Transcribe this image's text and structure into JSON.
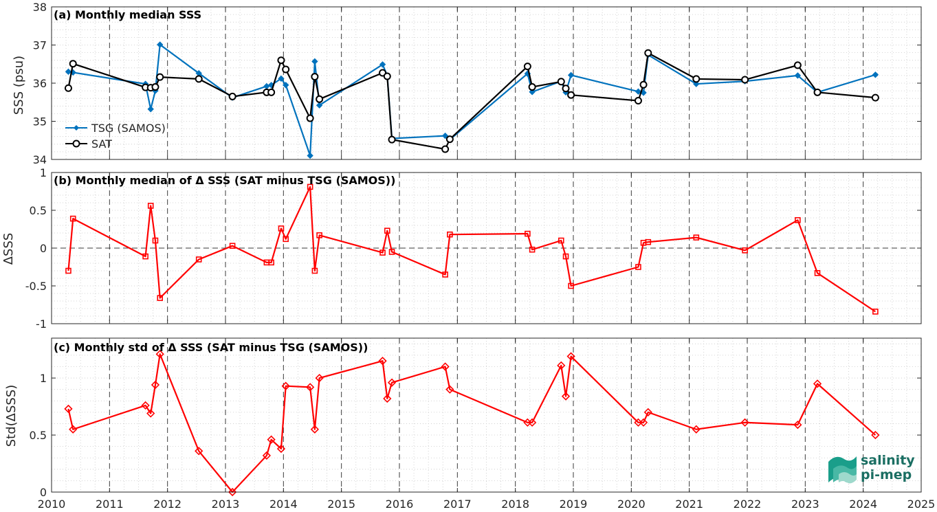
{
  "chart_data": [
    {
      "type": "line",
      "title": "(a) Monthly median SSS",
      "xlabel": "",
      "ylabel": "SSS (psu)",
      "xlim": [
        2010,
        2025
      ],
      "ylim": [
        34,
        38
      ],
      "yticks": [
        34,
        35,
        36,
        37,
        38
      ],
      "grid": "minor dotted, yearly dashed verticals",
      "legend": "lower-left",
      "series": [
        {
          "name": "TSG (SAMOS)",
          "color": "#0072bd",
          "marker": "diamond",
          "x": [
            2010.29,
            2010.37,
            2011.62,
            2011.71,
            2011.79,
            2011.87,
            2012.54,
            2013.12,
            2013.71,
            2013.79,
            2013.96,
            2014.04,
            2014.46,
            2014.54,
            2014.62,
            2015.71,
            2015.79,
            2015.87,
            2016.79,
            2016.87,
            2018.21,
            2018.29,
            2018.79,
            2018.87,
            2018.96,
            2020.12,
            2020.21,
            2020.29,
            2021.12,
            2021.96,
            2022.87,
            2023.21,
            2024.21
          ],
          "y": [
            36.3,
            36.28,
            35.98,
            35.32,
            35.8,
            37.01,
            36.26,
            35.62,
            35.92,
            35.95,
            36.12,
            35.95,
            34.1,
            36.57,
            35.42,
            36.49,
            36.2,
            34.55,
            34.62,
            34.52,
            36.25,
            35.77,
            36.05,
            35.76,
            36.21,
            35.78,
            35.75,
            36.74,
            35.98,
            36.05,
            36.2,
            35.76,
            36.22
          ]
        },
        {
          "name": "SAT",
          "color": "#000000",
          "marker": "circle",
          "x": [
            2010.29,
            2010.37,
            2011.62,
            2011.71,
            2011.79,
            2011.87,
            2012.54,
            2013.12,
            2013.71,
            2013.79,
            2013.96,
            2014.04,
            2014.46,
            2014.54,
            2014.62,
            2015.71,
            2015.79,
            2015.87,
            2016.79,
            2016.87,
            2018.21,
            2018.29,
            2018.79,
            2018.87,
            2018.96,
            2020.12,
            2020.21,
            2020.29,
            2021.12,
            2021.96,
            2022.87,
            2023.21,
            2024.21
          ],
          "y": [
            35.87,
            36.51,
            35.89,
            35.88,
            35.9,
            36.16,
            36.11,
            35.65,
            35.76,
            35.76,
            36.6,
            36.36,
            35.08,
            36.17,
            35.58,
            36.27,
            36.18,
            34.52,
            34.27,
            34.53,
            36.44,
            35.9,
            36.04,
            35.86,
            35.69,
            35.54,
            35.96,
            36.79,
            36.11,
            36.09,
            36.47,
            35.76,
            35.62
          ]
        }
      ]
    },
    {
      "type": "line",
      "title": "(b) Monthly median of Δ SSS (SAT minus TSG (SAMOS))",
      "xlabel": "",
      "ylabel": "ΔSSS",
      "xlim": [
        2010,
        2025
      ],
      "ylim": [
        -1,
        1
      ],
      "yticks": [
        -1,
        -0.5,
        0,
        0.5,
        1
      ],
      "reference_line": 0,
      "grid": "minor dotted, yearly dashed verticals",
      "series": [
        {
          "color": "#ff0000",
          "marker": "square",
          "x": [
            2010.29,
            2010.37,
            2011.62,
            2011.71,
            2011.79,
            2011.87,
            2012.54,
            2013.12,
            2013.71,
            2013.79,
            2013.96,
            2014.04,
            2014.46,
            2014.54,
            2014.62,
            2015.71,
            2015.79,
            2015.87,
            2016.79,
            2016.87,
            2018.21,
            2018.29,
            2018.79,
            2018.87,
            2018.96,
            2020.12,
            2020.21,
            2020.29,
            2021.12,
            2021.96,
            2022.87,
            2023.21,
            2024.21
          ],
          "y": [
            -0.3,
            0.39,
            -0.11,
            0.56,
            0.1,
            -0.66,
            -0.15,
            0.03,
            -0.19,
            -0.19,
            0.26,
            0.12,
            0.81,
            -0.3,
            0.17,
            -0.06,
            0.23,
            -0.05,
            -0.35,
            0.18,
            0.19,
            -0.02,
            0.1,
            -0.11,
            -0.5,
            -0.25,
            0.07,
            0.08,
            0.14,
            -0.03,
            0.37,
            -0.33,
            -0.84
          ]
        }
      ]
    },
    {
      "type": "line",
      "title": "(c) Monthly std of Δ SSS (SAT minus TSG (SAMOS))",
      "xlabel": "",
      "ylabel": "Std(ΔSSS)",
      "xlim": [
        2010,
        2025
      ],
      "ylim": [
        0,
        1.35
      ],
      "yticks": [
        0,
        0.5,
        1
      ],
      "grid": "minor dotted, yearly dashed verticals",
      "series": [
        {
          "color": "#ff0000",
          "marker": "diamond",
          "x": [
            2010.29,
            2010.37,
            2011.62,
            2011.71,
            2011.79,
            2011.87,
            2012.54,
            2013.12,
            2013.71,
            2013.79,
            2013.96,
            2014.04,
            2014.46,
            2014.54,
            2014.62,
            2015.71,
            2015.79,
            2015.87,
            2016.79,
            2016.87,
            2018.21,
            2018.29,
            2018.79,
            2018.87,
            2018.96,
            2020.12,
            2020.21,
            2020.29,
            2021.12,
            2021.96,
            2022.87,
            2023.21,
            2024.21
          ],
          "y": [
            0.73,
            0.55,
            0.76,
            0.69,
            0.94,
            1.21,
            0.36,
            0.0,
            0.32,
            0.46,
            0.38,
            0.93,
            0.92,
            0.55,
            1.0,
            1.15,
            0.82,
            0.96,
            1.1,
            0.9,
            0.61,
            0.61,
            1.11,
            0.84,
            1.19,
            0.61,
            0.61,
            0.7,
            0.55,
            0.61,
            0.59,
            0.95,
            0.5
          ]
        }
      ]
    }
  ],
  "x_axis": {
    "ticks": [
      2010,
      2011,
      2012,
      2013,
      2014,
      2015,
      2016,
      2017,
      2018,
      2019,
      2020,
      2021,
      2022,
      2023,
      2024,
      2025
    ],
    "tick_labels": [
      "2010",
      "2011",
      "2012",
      "2013",
      "2014",
      "2015",
      "2016",
      "2017",
      "2018",
      "2019",
      "2020",
      "2021",
      "2022",
      "2023",
      "2024",
      "2025"
    ]
  },
  "logo": {
    "line1": "salinity",
    "line2": "pi-mep",
    "color": "#1a9e8a"
  }
}
